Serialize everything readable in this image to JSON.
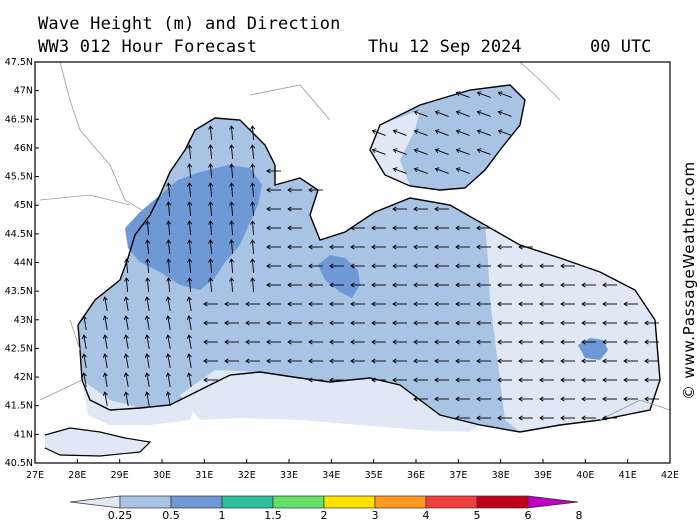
{
  "header": {
    "title": "Wave Height (m) and Direction",
    "subtitle": "WW3 012 Hour Forecast",
    "date": "Thu 12 Sep 2024",
    "time": "00 UTC"
  },
  "credit": "© www.PassageWeather.com",
  "axes": {
    "lat_ticks": [
      "47.5N",
      "47N",
      "46.5N",
      "46N",
      "45.5N",
      "45N",
      "44.5N",
      "44N",
      "43.5N",
      "43N",
      "42.5N",
      "42N",
      "41.5N",
      "41N",
      "40.5N"
    ],
    "lon_ticks": [
      "27E",
      "28E",
      "29E",
      "30E",
      "31E",
      "32E",
      "33E",
      "34E",
      "35E",
      "36E",
      "37E",
      "38E",
      "39E",
      "40E",
      "41E",
      "42E"
    ]
  },
  "colorbar": {
    "labels": [
      "0.25",
      "0.5",
      "1",
      "1.5",
      "2",
      "3",
      "4",
      "5",
      "6",
      "8"
    ],
    "colors": [
      "#dfe8f4",
      "#a9c3e4",
      "#6e99d6",
      "#2ebf9c",
      "#66e066",
      "#ffe100",
      "#ff9a1f",
      "#f04040",
      "#c00018",
      "#c000c0"
    ]
  },
  "colors": {
    "land": "#ffffff",
    "sea_low": "#dfe8f4",
    "sea_mid": "#a9c3e4",
    "sea_high": "#6e99d6"
  }
}
